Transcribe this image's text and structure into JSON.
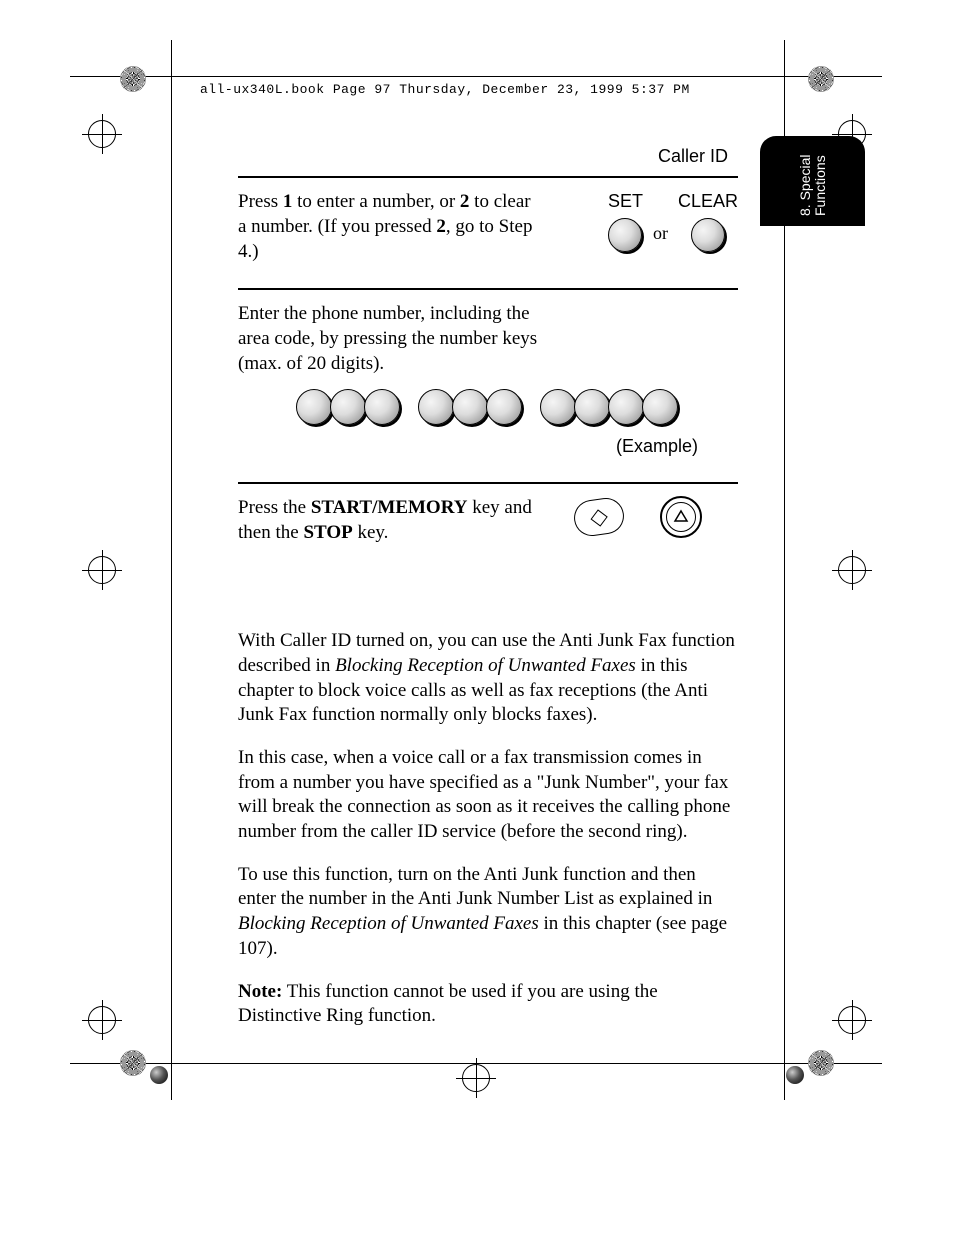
{
  "header_text": "all-ux340L.book  Page 97  Thursday, December 23, 1999  5:37 PM",
  "page_title": "Caller ID",
  "tab_label": "8. Special\nFunctions",
  "step1": {
    "text_a": "Press ",
    "bold1": "1",
    "text_b": " to enter a number, or ",
    "bold2": "2",
    "text_c": " to clear a number. (If you pressed ",
    "bold3": "2",
    "text_d": ", go to Step 4.)",
    "label_set": "SET",
    "label_clear": "CLEAR",
    "or": "or"
  },
  "step2": {
    "text": "Enter the phone number, including the area code, by pressing the number keys (max. of 20 digits).",
    "example": "(Example)",
    "key_groups": [
      3,
      3,
      4
    ]
  },
  "step3": {
    "text_a": "Press the ",
    "bold1": "START/MEMORY",
    "text_b": " key and then the ",
    "bold2": "STOP",
    "text_c": " key."
  },
  "para1_a": "With Caller ID turned on, you can use the Anti Junk Fax function described in ",
  "para1_italic": "Blocking Reception of Unwanted Faxes",
  "para1_b": " in this chapter to block voice calls as well as fax receptions (the Anti Junk Fax function normally only blocks faxes).",
  "para2": "In this case, when a voice call or a fax transmission comes in from a number you have specified as a \"Junk Number\", your fax will break the connection as soon as it receives the calling phone number from the caller ID service (before the second ring).",
  "para3_a": "To use this function, turn on the Anti Junk function and then enter the number in the Anti Junk Number List as explained in ",
  "para3_italic": "Blocking Reception of Unwanted Faxes",
  "para3_b": " in this chapter (see page 107).",
  "note_label": "Note:",
  "note_text": " This function cannot be used if you are using the Distinctive Ring function.",
  "colors": {
    "text": "#000000",
    "bg": "#ffffff",
    "tab_bg": "#000000",
    "tab_text": "#ffffff"
  },
  "crop_marks": {
    "top_h": 76,
    "bottom_h": 1063,
    "left_v": 171,
    "right_v": 784
  }
}
